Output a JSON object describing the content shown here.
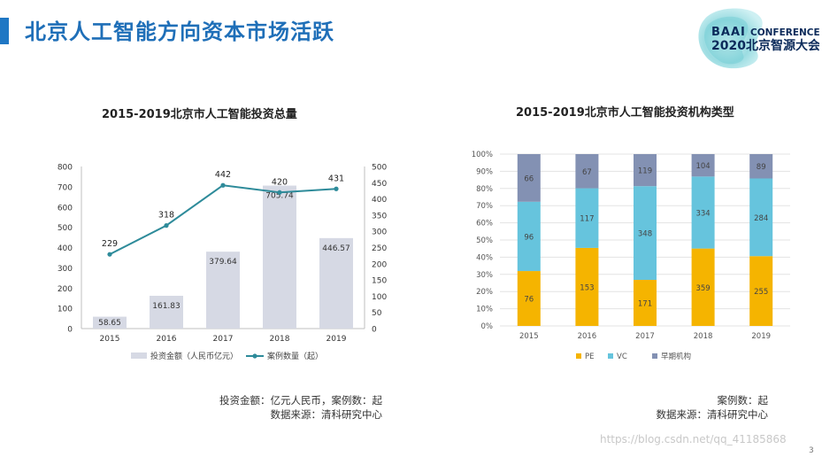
{
  "header": {
    "title": "北京人工智能方向资本市场活跃",
    "accent_color": "#1f77c4",
    "logo": {
      "brand": "BAAI",
      "tag": "CONFERENCE",
      "year_name": "2020北京智源大会"
    }
  },
  "chart_data": [
    {
      "type": "bar",
      "title": "2015-2019北京市人工智能投资总量",
      "categories": [
        "2015",
        "2016",
        "2017",
        "2018",
        "2019"
      ],
      "series": [
        {
          "name": "投资金额（人民币亿元）",
          "type": "bar",
          "axis": "left",
          "color": "#d6d9e4",
          "values": [
            58.65,
            161.83,
            379.64,
            705.74,
            446.57
          ],
          "labels": [
            "58.65",
            "161.83",
            "379.64",
            "705.74",
            "446.57"
          ]
        },
        {
          "name": "案例数量（起）",
          "type": "line",
          "axis": "right",
          "color": "#2e8b9a",
          "values": [
            229,
            318,
            442,
            420,
            431
          ],
          "labels": [
            "229",
            "318",
            "442",
            "420",
            "431"
          ]
        }
      ],
      "y_left": {
        "ylim": [
          0,
          800
        ],
        "ticks": [
          "0",
          "100",
          "200",
          "300",
          "400",
          "500",
          "600",
          "700",
          "800"
        ]
      },
      "y_right": {
        "ylim": [
          0,
          500
        ],
        "ticks": [
          "0",
          "50",
          "100",
          "150",
          "200",
          "250",
          "300",
          "350",
          "400",
          "450",
          "500"
        ]
      },
      "grid": false,
      "legend_position": "bottom"
    },
    {
      "type": "bar",
      "stacked": "percent",
      "title": "2015-2019北京市人工智能投资机构类型",
      "categories": [
        "2015",
        "2016",
        "2017",
        "2018",
        "2019"
      ],
      "series": [
        {
          "name": "PE",
          "color": "#f5b400",
          "values": [
            76,
            153,
            171,
            359,
            255
          ],
          "labels": [
            "76",
            "153",
            "171",
            "359",
            "255"
          ]
        },
        {
          "name": "VC",
          "color": "#66c4dd",
          "values": [
            96,
            117,
            348,
            334,
            284
          ],
          "labels": [
            "96",
            "117",
            "348",
            "334",
            "284"
          ]
        },
        {
          "name": "早期机构",
          "color": "#8391b3",
          "values": [
            66,
            67,
            119,
            104,
            89
          ],
          "labels": [
            "66",
            "67",
            "119",
            "104",
            "89"
          ]
        }
      ],
      "y": {
        "ylim": [
          0,
          100
        ],
        "ticks": [
          "0%",
          "10%",
          "20%",
          "30%",
          "40%",
          "50%",
          "60%",
          "70%",
          "80%",
          "90%",
          "100%"
        ]
      },
      "grid": true,
      "legend_position": "bottom"
    }
  ],
  "notes": {
    "left_line1": "投资金额：亿元人民币，案例数：起",
    "left_line2": "数据来源：清科研究中心",
    "right_line1": "案例数：起",
    "right_line2": "数据来源：清科研究中心"
  },
  "watermark": "https://blog.csdn.net/qq_41185868",
  "page_number": "3"
}
